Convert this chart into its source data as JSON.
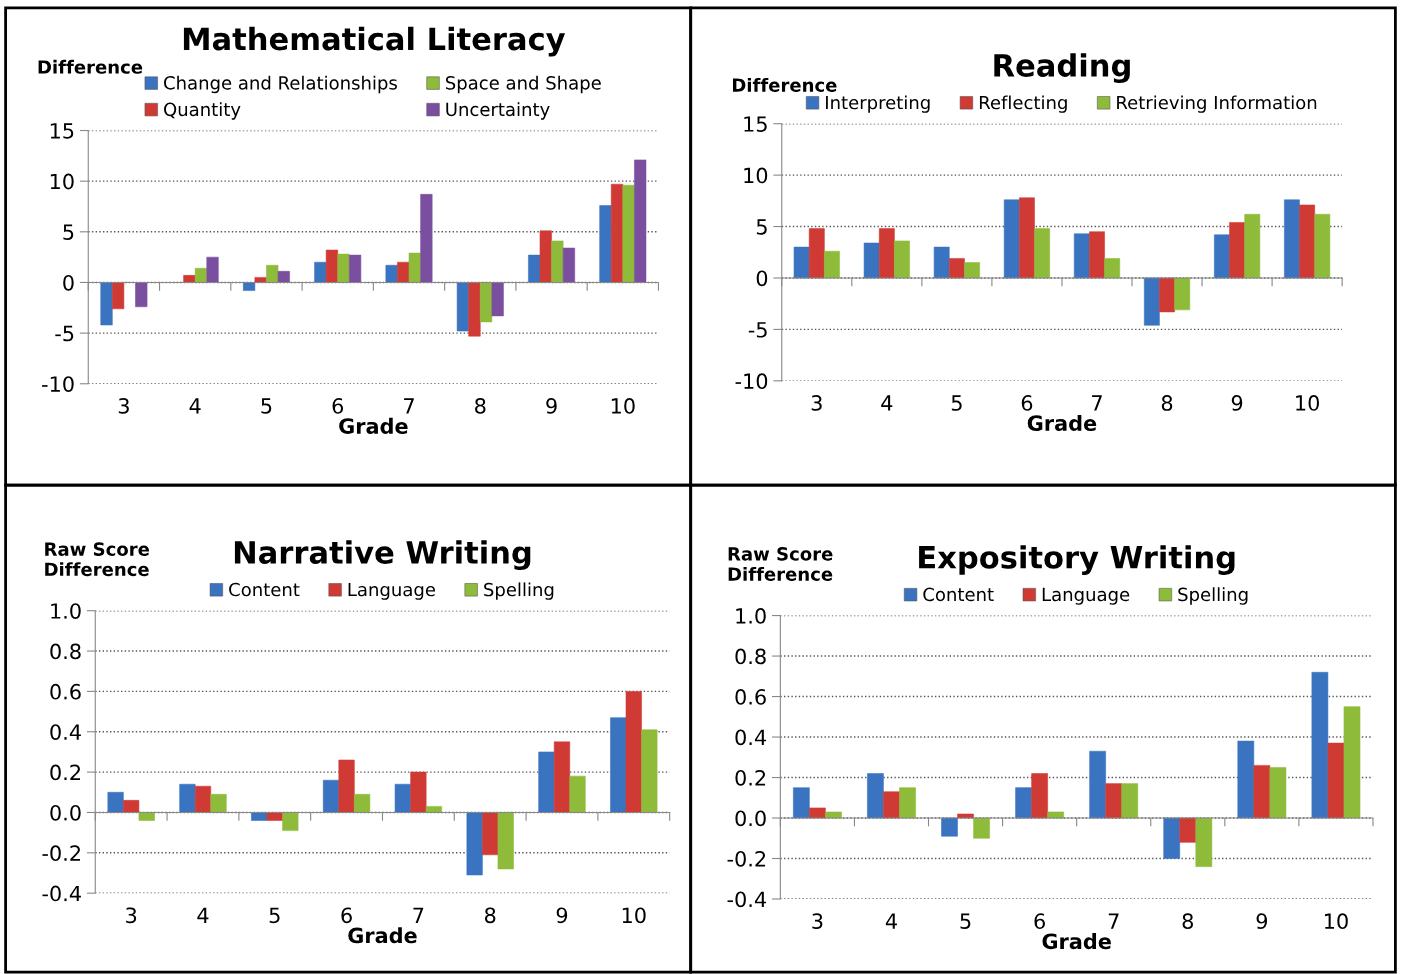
{
  "chart_data": [
    {
      "type": "bar",
      "title": "Mathematical Literacy",
      "ylabel": "Difference",
      "xlabel": "Grade",
      "categories": [
        "3",
        "4",
        "5",
        "6",
        "7",
        "8",
        "9",
        "10"
      ],
      "ylim": [
        -10,
        15
      ],
      "yticks": [
        -10,
        -5,
        0,
        5,
        10,
        15
      ],
      "grid": "y",
      "legend": "top",
      "series": [
        {
          "name": "Change and Relationships",
          "color": "#3a73c0",
          "values": [
            -4.2,
            0,
            -0.8,
            2.0,
            1.7,
            -4.8,
            2.7,
            7.6
          ]
        },
        {
          "name": "Quantity",
          "color": "#d03a35",
          "values": [
            -2.6,
            0.7,
            0.5,
            3.2,
            2.0,
            -5.3,
            5.1,
            9.7
          ]
        },
        {
          "name": "Space and Shape",
          "color": "#8fbb3a",
          "values": [
            0,
            1.4,
            1.7,
            2.8,
            2.9,
            -3.9,
            4.1,
            9.6
          ]
        },
        {
          "name": "Uncertainty",
          "color": "#7b4fa0",
          "values": [
            -2.4,
            2.5,
            1.1,
            2.7,
            8.7,
            -3.3,
            3.4,
            12.1
          ]
        }
      ]
    },
    {
      "type": "bar",
      "title": "Reading",
      "ylabel": "Difference",
      "xlabel": "Grade",
      "categories": [
        "3",
        "4",
        "5",
        "6",
        "7",
        "8",
        "9",
        "10"
      ],
      "ylim": [
        -10,
        15
      ],
      "yticks": [
        -10,
        -5,
        0,
        5,
        10,
        15
      ],
      "grid": "y",
      "legend": "top",
      "series": [
        {
          "name": "Interpreting",
          "color": "#3a73c0",
          "values": [
            3.0,
            3.4,
            3.0,
            7.6,
            4.3,
            -4.6,
            4.2,
            7.6
          ]
        },
        {
          "name": "Reflecting",
          "color": "#d03a35",
          "values": [
            4.8,
            4.8,
            1.9,
            7.8,
            4.5,
            -3.3,
            5.4,
            7.1
          ]
        },
        {
          "name": "Retrieving Information",
          "color": "#8fbb3a",
          "values": [
            2.6,
            3.6,
            1.5,
            4.8,
            1.9,
            -3.1,
            6.2,
            6.2
          ]
        }
      ]
    },
    {
      "type": "bar",
      "title": "Narrative Writing",
      "ylabel": "Raw Score\nDifference",
      "xlabel": "Grade",
      "categories": [
        "3",
        "4",
        "5",
        "6",
        "7",
        "8",
        "9",
        "10"
      ],
      "ylim": [
        -0.4,
        1.0
      ],
      "yticks": [
        {
          "value": -0.4,
          "label": "-0.4"
        },
        {
          "value": -0.2,
          "label": "-0.2"
        },
        {
          "value": 0,
          "label": "0.0"
        },
        {
          "value": 0.2,
          "label": "0.2"
        },
        {
          "value": 0.4,
          "label": "0.4"
        },
        {
          "value": 0.6,
          "label": "0.6"
        },
        {
          "value": 0.8,
          "label": "0.8"
        },
        {
          "value": 1.0,
          "label": "1.0"
        }
      ],
      "grid": "y",
      "legend": "top",
      "series": [
        {
          "name": "Content",
          "color": "#3a73c0",
          "values": [
            0.1,
            0.14,
            -0.04,
            0.16,
            0.14,
            -0.31,
            0.3,
            0.47
          ]
        },
        {
          "name": "Language",
          "color": "#d03a35",
          "values": [
            0.06,
            0.13,
            -0.04,
            0.26,
            0.2,
            -0.21,
            0.35,
            0.6
          ]
        },
        {
          "name": "Spelling",
          "color": "#8fbb3a",
          "values": [
            -0.04,
            0.09,
            -0.09,
            0.09,
            0.03,
            -0.28,
            0.18,
            0.41
          ]
        }
      ]
    },
    {
      "type": "bar",
      "title": "Expository Writing",
      "ylabel": "Raw Score\nDifference",
      "xlabel": "Grade",
      "categories": [
        "3",
        "4",
        "5",
        "6",
        "7",
        "8",
        "9",
        "10"
      ],
      "ylim": [
        -0.4,
        1.0
      ],
      "yticks": [
        {
          "value": -0.4,
          "label": "-0.4"
        },
        {
          "value": -0.2,
          "label": "-0.2"
        },
        {
          "value": 0,
          "label": "0.0"
        },
        {
          "value": 0.2,
          "label": "0.2"
        },
        {
          "value": 0.4,
          "label": "0.4"
        },
        {
          "value": 0.6,
          "label": "0.6"
        },
        {
          "value": 0.8,
          "label": "0.8"
        },
        {
          "value": 1.0,
          "label": "1.0"
        }
      ],
      "grid": "y",
      "legend": "top",
      "series": [
        {
          "name": "Content",
          "color": "#3a73c0",
          "values": [
            0.15,
            0.22,
            -0.09,
            0.15,
            0.33,
            -0.2,
            0.38,
            0.72
          ]
        },
        {
          "name": "Language",
          "color": "#d03a35",
          "values": [
            0.05,
            0.13,
            0.02,
            0.22,
            0.17,
            -0.12,
            0.26,
            0.37
          ]
        },
        {
          "name": "Spelling",
          "color": "#8fbb3a",
          "values": [
            0.03,
            0.15,
            -0.1,
            0.03,
            0.17,
            -0.24,
            0.25,
            0.55
          ]
        }
      ]
    }
  ]
}
